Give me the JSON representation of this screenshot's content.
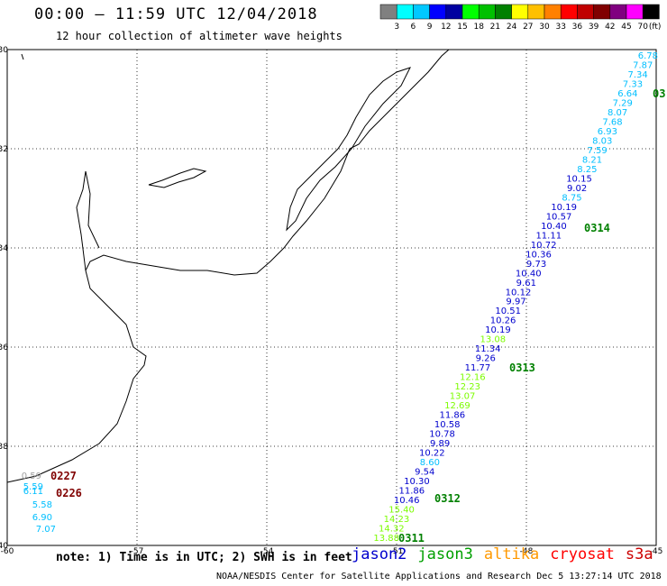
{
  "header": {
    "title": "00:00 – 11:59 UTC 12/04/2018",
    "subtitle": "12 hour collection of altimeter wave heights"
  },
  "colorbar": {
    "unit": "(ft)",
    "colors": [
      "#808080",
      "#00ffff",
      "#00c8ff",
      "#0000ff",
      "#0000a0",
      "#00ff00",
      "#00c000",
      "#008000",
      "#ffff00",
      "#ffc000",
      "#ff8000",
      "#ff0000",
      "#c00000",
      "#800000",
      "#800080",
      "#ff00ff",
      "#000000"
    ],
    "labels": [
      "3",
      "6",
      "9",
      "12",
      "15",
      "18",
      "21",
      "24",
      "27",
      "30",
      "33",
      "36",
      "39",
      "42",
      "45",
      "70"
    ]
  },
  "axes": {
    "lon_ticks": [
      "-60",
      "-57",
      "-54",
      "-51",
      "-48",
      "-45"
    ],
    "lat_ticks": [
      "-30",
      "-32",
      "-34",
      "-36",
      "-38",
      "-40"
    ]
  },
  "tracks": [
    {
      "satellite": "jason2",
      "points": [
        {
          "v": "6.78",
          "c": "#00bfff"
        },
        {
          "v": "7.87",
          "c": "#00bfff"
        },
        {
          "v": "7.34",
          "c": "#00bfff"
        },
        {
          "v": "7.33",
          "c": "#00bfff"
        },
        {
          "v": "6.64",
          "c": "#00bfff"
        },
        {
          "v": "7.29",
          "c": "#00bfff"
        },
        {
          "v": "8.07",
          "c": "#00bfff"
        },
        {
          "v": "7.68",
          "c": "#00bfff"
        },
        {
          "v": "6.93",
          "c": "#00bfff"
        },
        {
          "v": "8.03",
          "c": "#00bfff"
        },
        {
          "v": "7.59",
          "c": "#00bfff"
        },
        {
          "v": "8.21",
          "c": "#00bfff"
        },
        {
          "v": "8.25",
          "c": "#00bfff"
        },
        {
          "v": "10.15",
          "c": "#0000cd"
        },
        {
          "v": "9.02",
          "c": "#0000cd"
        },
        {
          "v": "8.75",
          "c": "#00bfff"
        },
        {
          "v": "10.19",
          "c": "#0000cd"
        },
        {
          "v": "10.57",
          "c": "#0000cd"
        },
        {
          "v": "10.40",
          "c": "#0000cd"
        },
        {
          "v": "11.11",
          "c": "#0000cd"
        },
        {
          "v": "10.72",
          "c": "#0000cd"
        },
        {
          "v": "10.36",
          "c": "#0000cd"
        },
        {
          "v": "9.73",
          "c": "#0000cd"
        },
        {
          "v": "10.40",
          "c": "#0000cd"
        },
        {
          "v": "9.61",
          "c": "#0000cd"
        },
        {
          "v": "10.12",
          "c": "#0000cd"
        },
        {
          "v": "9.97",
          "c": "#0000cd"
        },
        {
          "v": "10.51",
          "c": "#0000cd"
        },
        {
          "v": "10.26",
          "c": "#0000cd"
        },
        {
          "v": "10.19",
          "c": "#0000cd"
        },
        {
          "v": "13.08",
          "c": "#7cfc00"
        },
        {
          "v": "11.34",
          "c": "#0000cd"
        },
        {
          "v": "9.26",
          "c": "#0000cd"
        },
        {
          "v": "11.77",
          "c": "#0000cd"
        },
        {
          "v": "12.16",
          "c": "#7cfc00"
        },
        {
          "v": "12.23",
          "c": "#7cfc00"
        },
        {
          "v": "13.07",
          "c": "#7cfc00"
        },
        {
          "v": "12.69",
          "c": "#7cfc00"
        },
        {
          "v": "11.86",
          "c": "#0000cd"
        },
        {
          "v": "10.58",
          "c": "#0000cd"
        },
        {
          "v": "10.78",
          "c": "#0000cd"
        },
        {
          "v": "9.89",
          "c": "#0000cd"
        },
        {
          "v": "10.22",
          "c": "#0000cd"
        },
        {
          "v": "8.60",
          "c": "#00bfff"
        },
        {
          "v": "9.54",
          "c": "#0000cd"
        },
        {
          "v": "10.30",
          "c": "#0000cd"
        },
        {
          "v": "11.86",
          "c": "#0000cd"
        },
        {
          "v": "10.46",
          "c": "#0000cd"
        },
        {
          "v": "15.40",
          "c": "#7cfc00"
        },
        {
          "v": "14.23",
          "c": "#7cfc00"
        },
        {
          "v": "14.32",
          "c": "#7cfc00"
        },
        {
          "v": "13.88",
          "c": "#7cfc00"
        }
      ],
      "passes": [
        {
          "label": "0314",
          "color": "#008000"
        },
        {
          "label": "0313",
          "color": "#008000"
        },
        {
          "label": "0312",
          "color": "#008000"
        },
        {
          "label": "0311",
          "color": "#008000"
        },
        {
          "label": "03",
          "color": "#008000"
        }
      ]
    },
    {
      "satellite": "cryosat",
      "points": [
        {
          "v": "0.59",
          "c": "#a0a0a0"
        },
        {
          "v": "5.59",
          "c": "#00bfff"
        },
        {
          "v": "6.11",
          "c": "#00bfff"
        },
        {
          "v": "5.58",
          "c": "#00bfff"
        },
        {
          "v": "6.90",
          "c": "#00bfff"
        },
        {
          "v": "7.07",
          "c": "#00bfff"
        }
      ],
      "passes": [
        {
          "label": "0227",
          "color": "#800000"
        },
        {
          "label": "0226",
          "color": "#800000"
        }
      ]
    }
  ],
  "footer": {
    "note": "note: 1) Time is in UTC; 2) SWH is in feet",
    "legend": [
      {
        "name": "jason2",
        "color": "#0000cd"
      },
      {
        "name": "jason3",
        "color": "#00a000"
      },
      {
        "name": "altika",
        "color": "#ff9900"
      },
      {
        "name": "cryosat",
        "color": "#ff0000"
      },
      {
        "name": "s3a",
        "color": "#cc0000"
      }
    ],
    "credit": "NOAA/NESDIS Center for Satellite Applications and Research     Dec  5 13:27:14 UTC 2018"
  }
}
